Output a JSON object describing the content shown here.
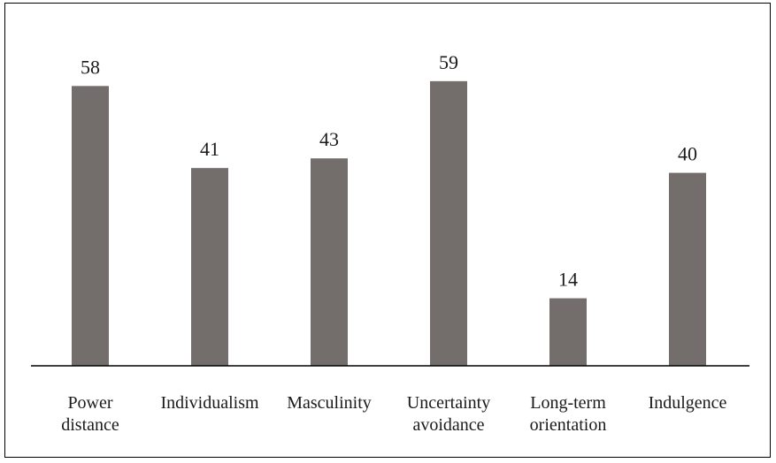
{
  "chart_data": {
    "type": "bar",
    "categories": [
      [
        "Power",
        "distance"
      ],
      [
        "Individualism"
      ],
      [
        "Masculinity"
      ],
      [
        "Uncertainty",
        "avoidance"
      ],
      [
        "Long-term",
        "orientation"
      ],
      [
        "Indulgence"
      ]
    ],
    "values": [
      58,
      41,
      43,
      59,
      14,
      40
    ],
    "data_labels": [
      "58",
      "41",
      "43",
      "59",
      "14",
      "40"
    ],
    "title": "",
    "xlabel": "",
    "ylabel": "",
    "ylim": [
      0,
      60
    ],
    "grid": false,
    "legend": "none",
    "bar_color": "#736e6c",
    "axis_color": "#000000"
  }
}
